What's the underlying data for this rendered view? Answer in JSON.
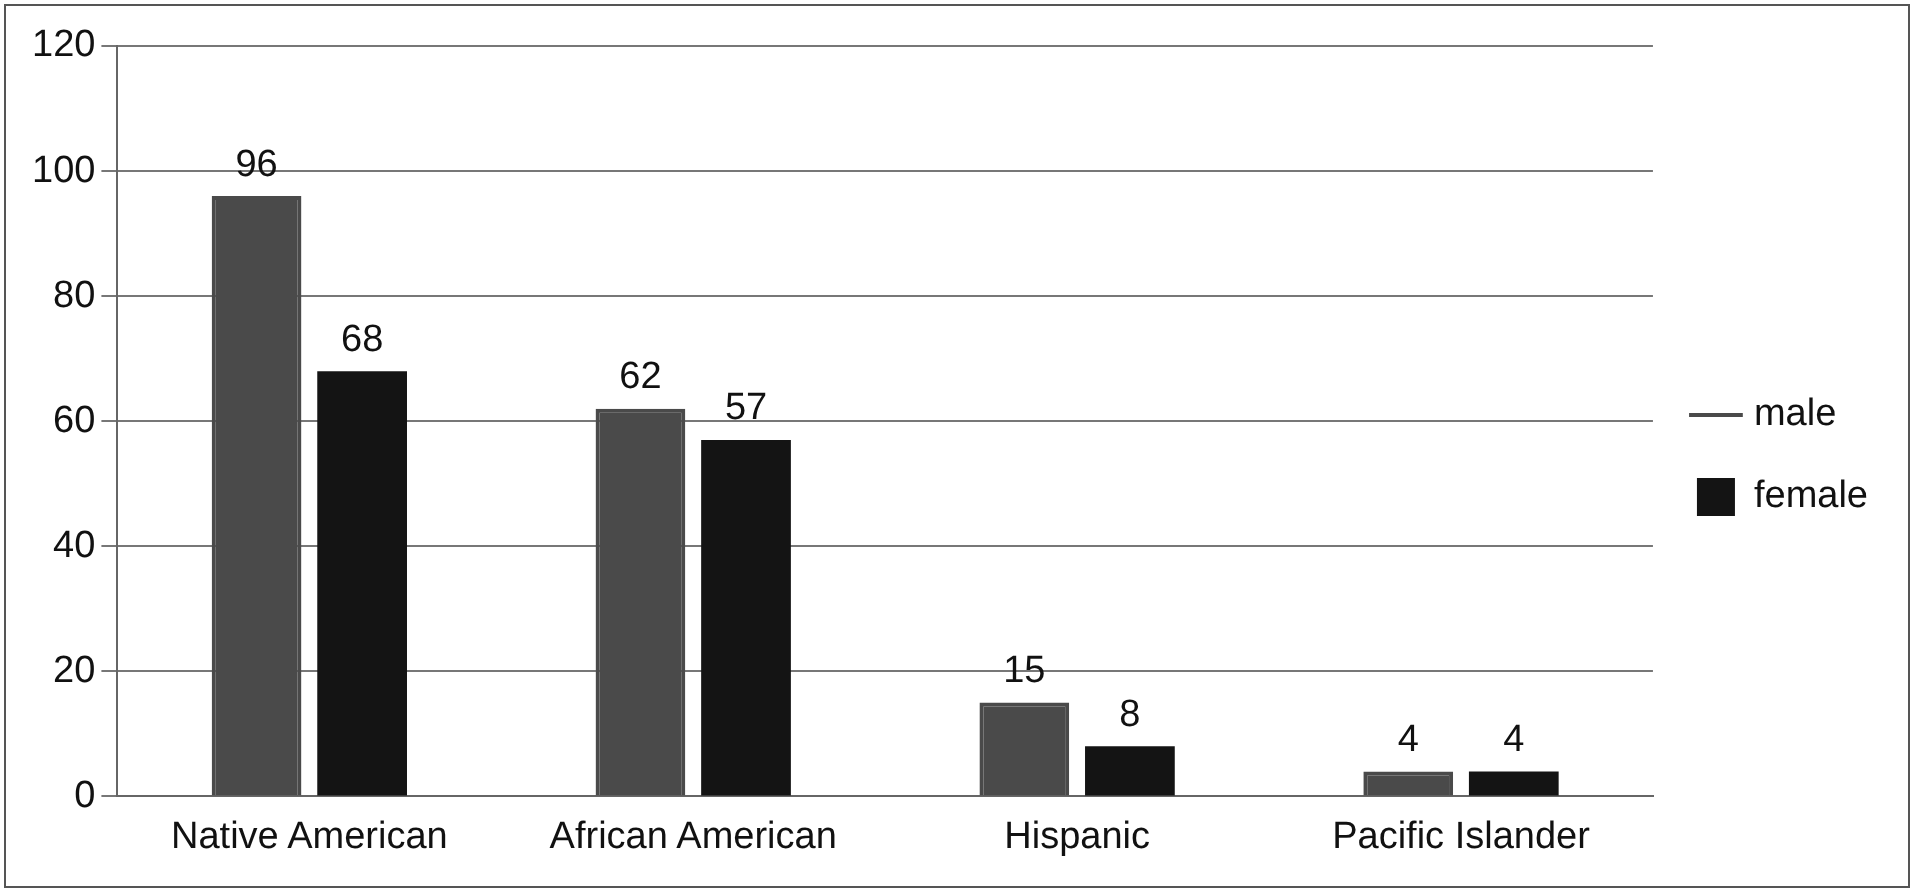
{
  "chart_data": {
    "type": "bar",
    "categories": [
      "Native American",
      "African American",
      "Hispanic",
      "Pacific Islander"
    ],
    "series": [
      {
        "name": "male",
        "color": "#4a4a4a",
        "values": [
          96,
          62,
          15,
          4
        ]
      },
      {
        "name": "female",
        "color": "#141414",
        "values": [
          68,
          57,
          8,
          4
        ]
      }
    ],
    "ylim": [
      0,
      120
    ],
    "yticks": [
      0,
      20,
      40,
      60,
      80,
      100,
      120
    ],
    "grid": "y",
    "legend": "right",
    "data_labels": true
  }
}
